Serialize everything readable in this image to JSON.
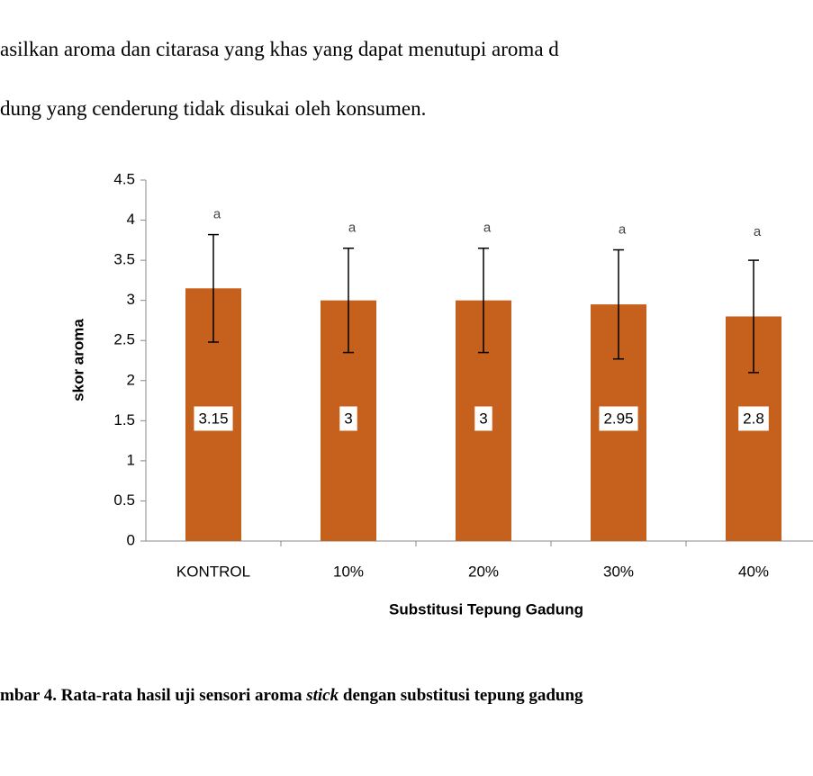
{
  "document": {
    "lines": [
      "asilkan aroma dan citarasa yang khas yang dapat menutupi aroma d",
      "dung yang cenderung tidak disukai oleh konsumen."
    ],
    "caption": [
      "mbar 4. Rata-rata hasil uji sensori aroma ",
      "stick",
      " dengan substitusi tepung gadung"
    ]
  },
  "chart_data": {
    "type": "bar",
    "categories": [
      "KONTROL",
      "10%",
      "20%",
      "30%",
      "40%"
    ],
    "values": [
      3.15,
      3,
      3,
      2.95,
      2.8
    ],
    "errors": [
      0.67,
      0.65,
      0.65,
      0.68,
      0.7
    ],
    "annotations": [
      "a",
      "a",
      "a",
      "a",
      "a"
    ],
    "color": "#c5611d",
    "ylabel": "skor aroma",
    "xlabel": "Substitusi Tepung Gadung",
    "ylim": [
      0,
      4.5
    ],
    "yticks": [
      0,
      0.5,
      1,
      1.5,
      2,
      2.5,
      3,
      3.5,
      4,
      4.5
    ]
  }
}
